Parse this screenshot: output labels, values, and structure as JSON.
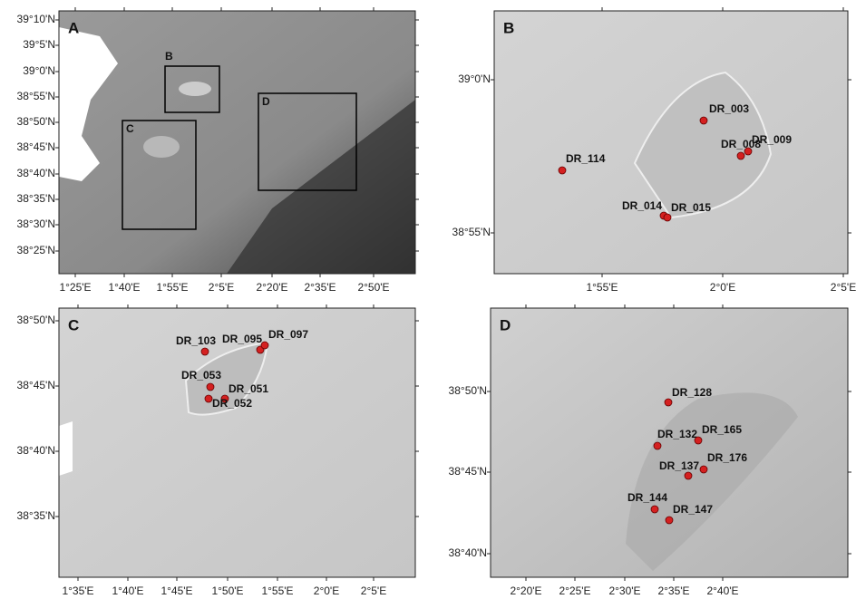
{
  "panels": [
    {
      "label": "A",
      "x_ticks": [
        "1°25'E",
        "1°40'E",
        "1°55'E",
        "2°5'E",
        "2°20'E",
        "2°35'E",
        "2°50'E"
      ],
      "y_ticks": [
        "39°10'N",
        "39°5'N",
        "39°0'N",
        "38°55'N",
        "38°50'N",
        "38°45'N",
        "38°40'N",
        "38°35'N",
        "38°30'N",
        "38°25'N"
      ],
      "boxes": [
        "B",
        "C",
        "D"
      ]
    },
    {
      "label": "B",
      "x_ticks": [
        "1°55'E",
        "2°0'E",
        "2°5'E"
      ],
      "y_ticks": [
        "39°0'N",
        "38°55'N"
      ],
      "sites": [
        "DR_003",
        "DR_008",
        "DR_009",
        "DR_114",
        "DR_014",
        "DR_015"
      ]
    },
    {
      "label": "C",
      "x_ticks": [
        "1°35'E",
        "1°40'E",
        "1°45'E",
        "1°50'E",
        "1°55'E",
        "2°0'E",
        "2°5'E"
      ],
      "y_ticks": [
        "38°50'N",
        "38°45'N",
        "38°40'N",
        "38°35'N"
      ],
      "sites": [
        "DR_103",
        "DR_095",
        "DR_097",
        "DR_053",
        "DR_051",
        "DR_052"
      ]
    },
    {
      "label": "D",
      "x_ticks": [
        "2°20'E",
        "2°25'E",
        "2°30'E",
        "2°35'E",
        "2°40'E"
      ],
      "y_ticks": [
        "38°50'N",
        "38°45'N",
        "38°40'N"
      ],
      "sites": [
        "DR_128",
        "DR_132",
        "DR_165",
        "DR_137",
        "DR_176",
        "DR_144",
        "DR_147"
      ]
    }
  ]
}
